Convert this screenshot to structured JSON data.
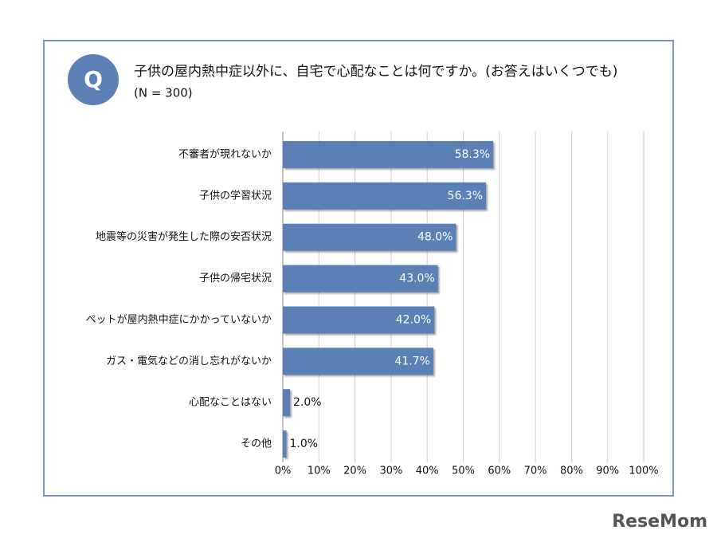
{
  "chart_data": {
    "type": "bar",
    "orientation": "horizontal",
    "title": "子供の屋内熱中症以外に、自宅で心配なことは何ですか。(お答えはいくつでも)",
    "subtitle": "(N = 300)",
    "badge": "Q",
    "categories": [
      "不審者が現れないか",
      "子供の学習状況",
      "地震等の災害が発生した際の安否状況",
      "子供の帰宅状況",
      "ペットが屋内熱中症にかかっていないか",
      "ガス・電気などの消し忘れがないか",
      "心配なことはない",
      "その他"
    ],
    "values": [
      58.3,
      56.3,
      48.0,
      43.0,
      42.0,
      41.7,
      2.0,
      1.0
    ],
    "value_labels": [
      "58.3%",
      "56.3%",
      "48.0%",
      "43.0%",
      "42.0%",
      "41.7%",
      "2.0%",
      "1.0%"
    ],
    "color": "#5b80b5",
    "xlim": [
      0,
      100
    ],
    "xticks": [
      {
        "value": 0,
        "label": "0%"
      },
      {
        "value": 10,
        "label": "10%"
      },
      {
        "value": 20,
        "label": "20%"
      },
      {
        "value": 30,
        "label": "30%"
      },
      {
        "value": 40,
        "label": "40%"
      },
      {
        "value": 50,
        "label": "50%"
      },
      {
        "value": 60,
        "label": "60%"
      },
      {
        "value": 70,
        "label": "70%"
      },
      {
        "value": 80,
        "label": "80%"
      },
      {
        "value": 90,
        "label": "90%"
      },
      {
        "value": 100,
        "label": "100%"
      }
    ],
    "grid": true,
    "logo": "ReseMom"
  }
}
